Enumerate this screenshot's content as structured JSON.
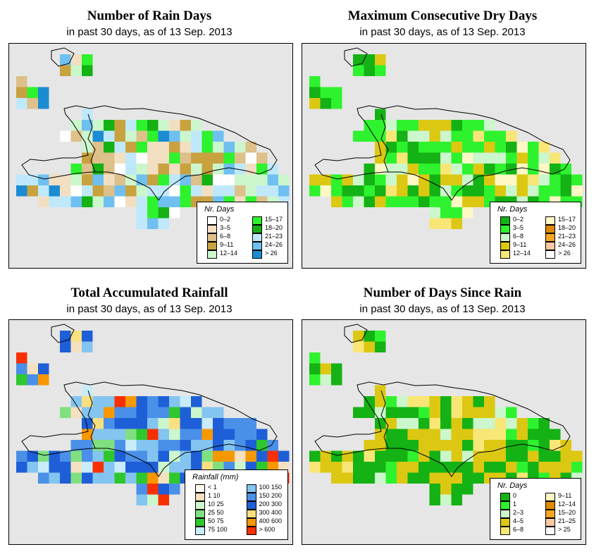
{
  "panels": [
    {
      "id": "rain_days",
      "title": "Number of Rain Days",
      "subtitle": "in past 30 days, as of  13 Sep. 2013",
      "legend": {
        "title": "Nr. Days",
        "items": [
          {
            "label": "0–2",
            "color": "#ffffff"
          },
          {
            "label": "3–5",
            "color": "#f2dfc2"
          },
          {
            "label": "6–8",
            "color": "#ddc08a"
          },
          {
            "label": "9–11",
            "color": "#c9a240"
          },
          {
            "label": "12–14",
            "color": "#ccf6cc"
          },
          {
            "label": "15–17",
            "color": "#2ef22e"
          },
          {
            "label": "18–20",
            "color": "#14b214"
          },
          {
            "label": "21–23",
            "color": "#bfe9fb"
          },
          {
            "label": "24–26",
            "color": "#6fc0f0"
          },
          {
            "label": "> 26",
            "color": "#1c8cd2"
          }
        ]
      }
    },
    {
      "id": "max_dry",
      "title": "Maximum Consecutive Dry Days",
      "subtitle": "in past 30 days, as of  13 Sep. 2013",
      "legend": {
        "title": "Nr. Days",
        "items": [
          {
            "label": "0–2",
            "color": "#14b214"
          },
          {
            "label": "3–5",
            "color": "#2ef22e"
          },
          {
            "label": "6–8",
            "color": "#ccf6cc"
          },
          {
            "label": "9–11",
            "color": "#dcc812"
          },
          {
            "label": "12–14",
            "color": "#f8e676"
          },
          {
            "label": "15–17",
            "color": "#fff8c4"
          },
          {
            "label": "18–20",
            "color": "#e08800"
          },
          {
            "label": "21–23",
            "color": "#f5a623"
          },
          {
            "label": "24–26",
            "color": "#fcc8a0"
          },
          {
            "label": "> 26",
            "color": "#ffffff"
          }
        ]
      }
    },
    {
      "id": "rainfall",
      "title": "Total Accumulated Rainfall",
      "subtitle": "in past 30 days, as of  13 Sep. 2013",
      "legend": {
        "title": "Rainfall (mm)",
        "items": [
          {
            "label": "< 1",
            "color": "#fff8ee"
          },
          {
            "label": "1   10",
            "color": "#f5e0c0"
          },
          {
            "label": "10   25",
            "color": "#ccf6cc"
          },
          {
            "label": "25   50",
            "color": "#80e080"
          },
          {
            "label": "50   75",
            "color": "#2ec82e"
          },
          {
            "label": "75   100",
            "color": "#c8ecfa"
          },
          {
            "label": "100   150",
            "color": "#84c4f0"
          },
          {
            "label": "150   200",
            "color": "#4a90e8"
          },
          {
            "label": "200   300",
            "color": "#1e5fd8"
          },
          {
            "label": "300   400",
            "color": "#f8e080"
          },
          {
            "label": "400   600",
            "color": "#f89800"
          },
          {
            "label": "> 600",
            "color": "#f83000"
          }
        ]
      }
    },
    {
      "id": "days_since",
      "title": "Number of Days Since Rain",
      "subtitle": "in past 30 days, as of  13 Sep. 2013",
      "legend": {
        "title": "Nr. Days",
        "items": [
          {
            "label": "0",
            "color": "#14b214"
          },
          {
            "label": "1",
            "color": "#2ef22e"
          },
          {
            "label": "2–3",
            "color": "#ccf6cc"
          },
          {
            "label": "4–5",
            "color": "#dcc812"
          },
          {
            "label": "6–8",
            "color": "#f8e676"
          },
          {
            "label": "9–11",
            "color": "#fff8c4"
          },
          {
            "label": "12–14",
            "color": "#e08800"
          },
          {
            "label": "15–20",
            "color": "#f5a623"
          },
          {
            "label": "21–25",
            "color": "#fcc8a0"
          },
          {
            "label": "> 25",
            "color": "#ffffff"
          }
        ]
      }
    }
  ]
}
